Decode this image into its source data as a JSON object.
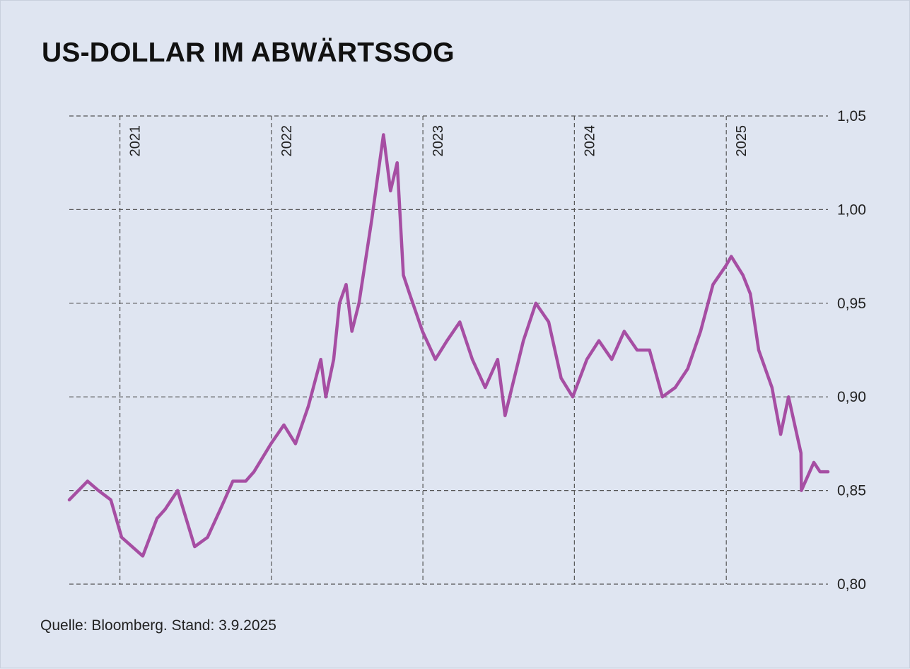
{
  "title": "US-DOLLAR IM ABWÄRTSSOG",
  "source": "Quelle: Bloomberg. Stand: 3.9.2025",
  "colors": {
    "background": "#dfe5f1",
    "line": "#a64ea3",
    "grid": "#555555"
  },
  "chart_data": {
    "type": "line",
    "title": "US-DOLLAR IM ABWÄRTSSOG",
    "xlabel": "",
    "ylabel": "",
    "xlim": [
      "2020-09-01",
      "2025-09-03"
    ],
    "ylim": [
      0.8,
      1.05
    ],
    "yticks": [
      0.8,
      0.85,
      0.9,
      0.95,
      1.0,
      1.05
    ],
    "ytick_labels": [
      "0,80",
      "0,85",
      "0,90",
      "0,95",
      "1,00",
      "1,05"
    ],
    "year_markers": [
      {
        "date": "2021-01-01",
        "label": "2021"
      },
      {
        "date": "2022-01-01",
        "label": "2022"
      },
      {
        "date": "2023-01-01",
        "label": "2023"
      },
      {
        "date": "2024-01-01",
        "label": "2024"
      },
      {
        "date": "2025-01-01",
        "label": "2025"
      }
    ],
    "grid": "dashed",
    "y_axis_position": "right",
    "series": [
      {
        "x": [
          "2020-09-01",
          "2020-10-15",
          "2020-11-10",
          "2020-12-10",
          "2021-01-05",
          "2021-02-25",
          "2021-03-31",
          "2021-04-20",
          "2021-05-20",
          "2021-06-30",
          "2021-07-31",
          "2021-08-31",
          "2021-09-30",
          "2021-10-31",
          "2021-11-20",
          "2021-12-31",
          "2022-01-31",
          "2022-02-28",
          "2022-03-31",
          "2022-04-30",
          "2022-05-12",
          "2022-05-31",
          "2022-06-14",
          "2022-06-30",
          "2022-07-14",
          "2022-07-31",
          "2022-08-31",
          "2022-09-28",
          "2022-10-15",
          "2022-10-31",
          "2022-11-15",
          "2022-11-30",
          "2022-12-31",
          "2023-01-31",
          "2023-02-28",
          "2023-03-31",
          "2023-04-30",
          "2023-05-31",
          "2023-06-30",
          "2023-07-18",
          "2023-08-31",
          "2023-09-30",
          "2023-10-31",
          "2023-11-30",
          "2023-12-28",
          "2024-01-31",
          "2024-02-29",
          "2024-03-31",
          "2024-04-30",
          "2024-05-31",
          "2024-06-30",
          "2024-07-31",
          "2024-08-31",
          "2024-09-30",
          "2024-10-31",
          "2024-11-30",
          "2024-12-31",
          "2025-01-13",
          "2025-02-10",
          "2025-02-28",
          "2025-03-20",
          "2025-04-21",
          "2025-05-12",
          "2025-05-31",
          "2025-06-30",
          "2025-07-01",
          "2025-07-31",
          "2025-08-15",
          "2025-09-03"
        ],
        "values": [
          0.845,
          0.855,
          0.85,
          0.845,
          0.825,
          0.815,
          0.835,
          0.84,
          0.85,
          0.82,
          0.825,
          0.84,
          0.855,
          0.855,
          0.86,
          0.875,
          0.885,
          0.875,
          0.895,
          0.92,
          0.9,
          0.92,
          0.95,
          0.96,
          0.935,
          0.95,
          0.995,
          1.04,
          1.01,
          1.025,
          0.965,
          0.955,
          0.935,
          0.92,
          0.93,
          0.94,
          0.92,
          0.905,
          0.92,
          0.89,
          0.93,
          0.95,
          0.94,
          0.91,
          0.9,
          0.92,
          0.93,
          0.92,
          0.935,
          0.925,
          0.925,
          0.9,
          0.905,
          0.915,
          0.935,
          0.96,
          0.97,
          0.975,
          0.965,
          0.955,
          0.925,
          0.905,
          0.88,
          0.9,
          0.87,
          0.85,
          0.865,
          0.86,
          0.86
        ]
      }
    ]
  }
}
